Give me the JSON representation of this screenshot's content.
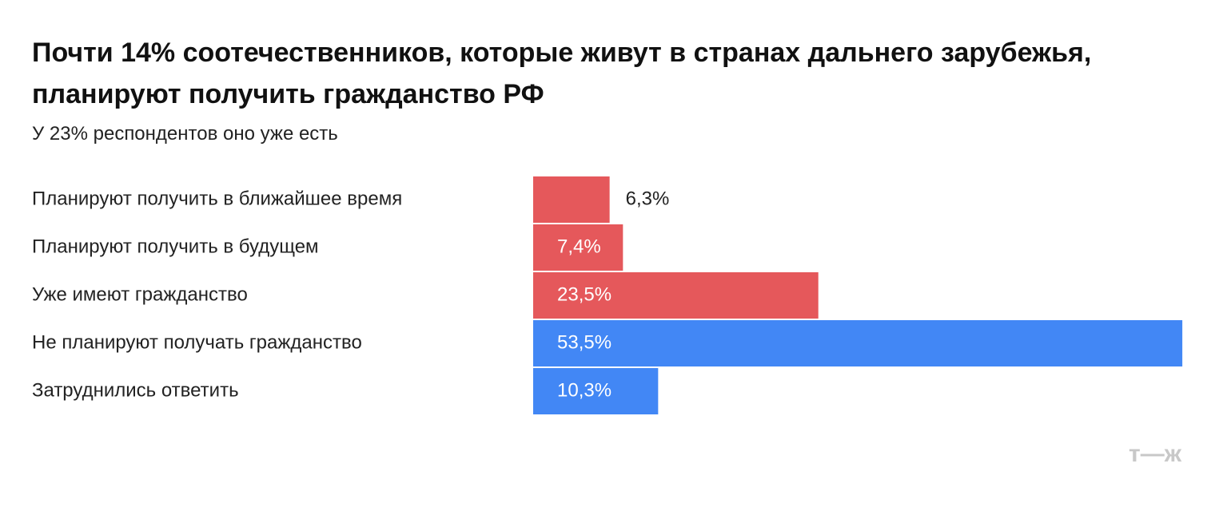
{
  "chart_data": {
    "type": "hbar",
    "title": "Почти 14% соотечественников, которые живут в странах дальнего зарубежья, планируют получить гражданство РФ",
    "subtitle": "У 23% респондентов оно уже есть",
    "categories": [
      "Планируют получить в ближайшее время",
      "Планируют получить в будущем",
      "Уже имеют гражданство",
      "Не планируют получать гражданство",
      "Затруднились ответить"
    ],
    "values": [
      6.3,
      7.4,
      23.5,
      53.5,
      10.3
    ],
    "value_labels": [
      "6,3%",
      "7,4%",
      "23,5%",
      "53,5%",
      "10,3%"
    ],
    "colors": [
      "#e5585b",
      "#e5585b",
      "#e5585b",
      "#4287f5",
      "#4287f5"
    ]
  },
  "logo": "т—ж"
}
